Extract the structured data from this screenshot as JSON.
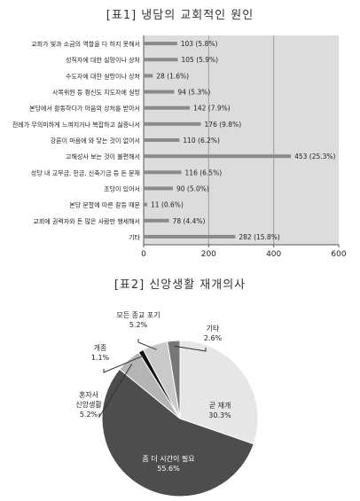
{
  "chart1": {
    "title": "[표1] 냉담의 교회적인 원인",
    "chart_data": {
      "type": "bar",
      "orientation": "horizontal",
      "categories": [
        "교회가 빛과 소금의 역할을 다 하지 못해서",
        "성직자에 대한 실망이나 상처",
        "수도자에 대한 실망이나 상처",
        "사목위원 등 평신도 지도자에 실망",
        "본당에서 활동하다가 마음의 상처를 받아서",
        "전례가 무의미하게 느껴지거나 복잡하고 싫증나서",
        "강론이 마음에 와 닿는 것이 없어서",
        "고해성사 보는 것이 불편해서",
        "성당 내 교무금, 헌금, 신축기금 등 돈 문제",
        "조당이 있어서",
        "본당 분할에 따른 갈등 때문",
        "교회에 권력자와 돈 많은 사람만 행세해서",
        "기타"
      ],
      "values": [
        103,
        105,
        28,
        94,
        142,
        176,
        110,
        453,
        116,
        90,
        11,
        78,
        282
      ],
      "labels": [
        "103 (5.8%)",
        "105 (5.9%)",
        "28 (1.6%)",
        "94 (5.3%)",
        "142 (7.9%)",
        "176 (9.8%)",
        "110 (6.2%)",
        "453 (25.3%)",
        "116 (6.5%)",
        "90 (5.0%)",
        "11 (0.6%)",
        "78 (4.4%)",
        "282 (15.8%)"
      ],
      "xlim": [
        0,
        600
      ],
      "xticks": [
        "0",
        "200",
        "400",
        "600"
      ],
      "grid": true,
      "bar_color": "#8a8a8a",
      "plot_bg": "#dcdcdc"
    }
  },
  "chart2": {
    "title": "[표2] 신앙생활 재개의사",
    "chart_data": {
      "type": "pie",
      "slices": [
        {
          "name": "곧 재개",
          "value": 30.3,
          "label": "30.3%",
          "color": "#e6e6e6"
        },
        {
          "name": "좀 더 시간이 필요",
          "value": 55.6,
          "label": "55.6%",
          "color": "#4d4d4d"
        },
        {
          "name": "혼자서 신앙생활",
          "value": 5.2,
          "label": "5.2%",
          "color": "#b4b4b4"
        },
        {
          "name": "개종",
          "value": 1.1,
          "label": "1.1%",
          "color": "#111111"
        },
        {
          "name": "모든 종교 포기",
          "value": 5.2,
          "label": "5.2%",
          "color": "#c9c9c9"
        },
        {
          "name": "기타",
          "value": 2.6,
          "label": "2.6%",
          "color": "#777777"
        }
      ]
    }
  }
}
